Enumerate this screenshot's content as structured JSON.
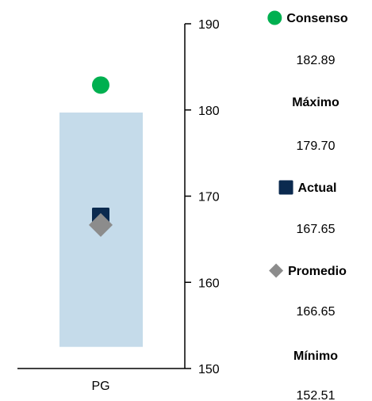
{
  "chart_data": {
    "type": "scatter",
    "categories": [
      "PG"
    ],
    "ylim": [
      150,
      190
    ],
    "yticks": [
      150,
      160,
      170,
      180,
      190
    ],
    "grid": false,
    "legend_position": "right",
    "range_band": {
      "low": 152.51,
      "high": 179.7,
      "color": "#c5dbea"
    },
    "series": [
      {
        "name": "Consenso",
        "marker": "circle",
        "color": "#00b050",
        "values": [
          182.89
        ]
      },
      {
        "name": "Actual",
        "marker": "square",
        "color": "#0b2a4f",
        "values": [
          167.65
        ]
      },
      {
        "name": "Promedio",
        "marker": "diamond",
        "color": "#8c8c8c",
        "values": [
          166.65
        ]
      }
    ],
    "legend": [
      {
        "title": "Consenso",
        "value": "182.89",
        "marker": "circle",
        "color": "#00b050"
      },
      {
        "title": "Máximo",
        "value": "179.70",
        "marker": "none"
      },
      {
        "title": "Actual",
        "value": "167.65",
        "marker": "square",
        "color": "#0b2a4f"
      },
      {
        "title": "Promedio",
        "value": "166.65",
        "marker": "diamond",
        "color": "#8c8c8c"
      },
      {
        "title": "Mínimo",
        "value": "152.51",
        "marker": "none"
      }
    ]
  }
}
